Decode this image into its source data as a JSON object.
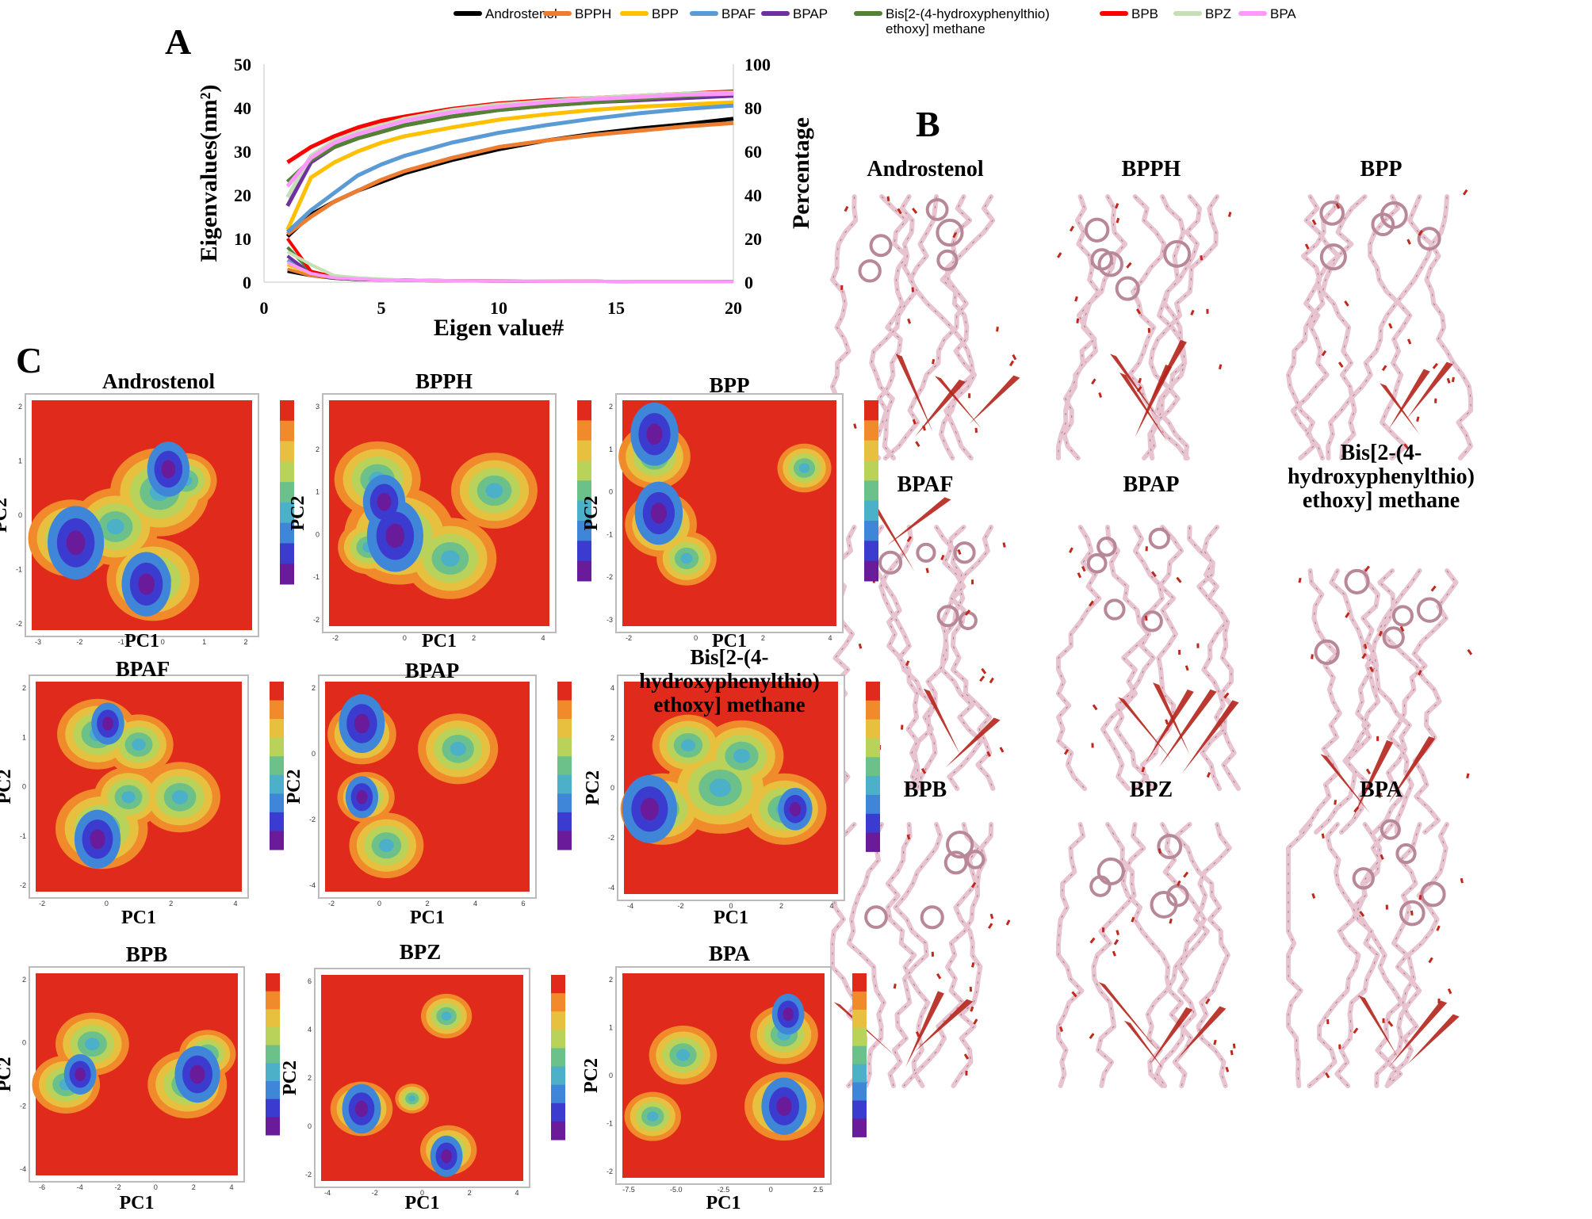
{
  "colors": {
    "Androstenol": "#000000",
    "BPPH": "#ed7d31",
    "BPP": "#ffc000",
    "BPAF": "#5b9bd5",
    "BPAP": "#7030a0",
    "Bis": "#548235",
    "BPB": "#ff0000",
    "BPZ": "#c5e0b4",
    "BPA": "#ff99ff"
  },
  "panel_letters": {
    "a": "A",
    "b": "B",
    "c": "C"
  },
  "legend": [
    {
      "key": "Androstenol",
      "label_lines": [
        "Androstenol"
      ]
    },
    {
      "key": "BPPH",
      "label_lines": [
        "BPPH"
      ]
    },
    {
      "key": "BPP",
      "label_lines": [
        "BPP"
      ]
    },
    {
      "key": "BPAF",
      "label_lines": [
        "BPAF"
      ]
    },
    {
      "key": "BPAP",
      "label_lines": [
        "BPAP"
      ]
    },
    {
      "key": "Bis",
      "label_lines": [
        "Bis[2-(4-hydroxyphenylthio)",
        "ethoxy] methane"
      ]
    },
    {
      "key": "BPB",
      "label_lines": [
        "BPB"
      ]
    },
    {
      "key": "BPZ",
      "label_lines": [
        "BPZ"
      ]
    },
    {
      "key": "BPA",
      "label_lines": [
        "BPA"
      ]
    }
  ],
  "chart_data": [
    {
      "type": "line",
      "panel": "A",
      "xlabel": "Eigen value#",
      "ylabel_left": "Eigenvalues(nm²)",
      "ylabel_right": "Percentage",
      "xlim": [
        0,
        20
      ],
      "ylim_left": [
        0,
        50
      ],
      "ylim_right": [
        0,
        100
      ],
      "xticks": [
        0,
        5,
        10,
        15,
        20
      ],
      "yticks_left": [
        0,
        10,
        20,
        30,
        40,
        50
      ],
      "yticks_right": [
        0,
        20,
        40,
        60,
        80,
        100
      ],
      "x": [
        1,
        2,
        3,
        4,
        5,
        6,
        8,
        10,
        12,
        14,
        16,
        18,
        20
      ],
      "cumulative_percentage": [
        {
          "name": "Androstenol",
          "values": [
            21,
            31,
            37,
            42,
            46,
            50,
            56,
            61,
            65,
            68,
            70.5,
            72.5,
            75
          ]
        },
        {
          "name": "BPPH",
          "values": [
            22,
            30,
            37,
            42,
            47,
            51,
            57,
            62,
            65,
            67.5,
            69.5,
            71.5,
            73
          ]
        },
        {
          "name": "BPP",
          "values": [
            24,
            48,
            55,
            60,
            64,
            67,
            71,
            74.5,
            77,
            79,
            80.5,
            81.5,
            82.5
          ]
        },
        {
          "name": "BPAF",
          "values": [
            23,
            33,
            41,
            49,
            54,
            58,
            64,
            68.5,
            72,
            75,
            77.5,
            79.5,
            81
          ]
        },
        {
          "name": "BPAP",
          "values": [
            35,
            55,
            62,
            66,
            69,
            72,
            76,
            79,
            81,
            82.5,
            83.5,
            84.5,
            85.5
          ]
        },
        {
          "name": "Bis",
          "values": [
            46,
            56,
            62,
            66,
            69,
            72,
            76,
            79,
            81,
            82.5,
            84,
            85.5,
            86.5
          ]
        },
        {
          "name": "BPB",
          "values": [
            55,
            62,
            67,
            71,
            74,
            76,
            79.5,
            82,
            83.5,
            84.5,
            85.5,
            86.5,
            87.5
          ]
        },
        {
          "name": "BPZ",
          "values": [
            39,
            58,
            65,
            69,
            72,
            75,
            79,
            81.5,
            83,
            84.5,
            85.5,
            86.5,
            87
          ]
        },
        {
          "name": "BPA",
          "values": [
            44,
            57,
            64,
            68,
            71,
            74,
            78,
            80.5,
            82.5,
            84,
            85,
            86,
            86.5
          ]
        }
      ],
      "eigenvalues": [
        {
          "name": "Androstenol",
          "values": [
            2.5,
            1.5,
            0.9,
            0.6,
            0.5,
            0.4,
            0.3,
            0.25,
            0.2,
            0.2,
            0.15,
            0.15,
            0.1
          ]
        },
        {
          "name": "BPPH",
          "values": [
            3,
            1.5,
            1,
            0.7,
            0.5,
            0.4,
            0.3,
            0.25,
            0.2,
            0.2,
            0.15,
            0.15,
            0.1
          ]
        },
        {
          "name": "BPP",
          "values": [
            4,
            2,
            1,
            0.7,
            0.5,
            0.4,
            0.3,
            0.25,
            0.2,
            0.2,
            0.15,
            0.15,
            0.1
          ]
        },
        {
          "name": "BPAF",
          "values": [
            5,
            2,
            1.2,
            0.8,
            0.6,
            0.5,
            0.35,
            0.3,
            0.25,
            0.2,
            0.15,
            0.15,
            0.1
          ]
        },
        {
          "name": "BPAP",
          "values": [
            6,
            2,
            1,
            0.7,
            0.5,
            0.4,
            0.3,
            0.25,
            0.2,
            0.2,
            0.15,
            0.15,
            0.1
          ]
        },
        {
          "name": "Bis",
          "values": [
            8,
            2.5,
            1.2,
            0.8,
            0.6,
            0.5,
            0.35,
            0.3,
            0.25,
            0.2,
            0.15,
            0.15,
            0.1
          ]
        },
        {
          "name": "BPB",
          "values": [
            10,
            2.5,
            1.2,
            0.8,
            0.6,
            0.5,
            0.35,
            0.3,
            0.25,
            0.2,
            0.15,
            0.15,
            0.1
          ]
        },
        {
          "name": "BPZ",
          "values": [
            7,
            4,
            1.5,
            1,
            0.7,
            0.5,
            0.35,
            0.3,
            0.25,
            0.2,
            0.15,
            0.15,
            0.1
          ]
        },
        {
          "name": "BPA",
          "values": [
            4.5,
            2,
            1,
            0.7,
            0.5,
            0.4,
            0.3,
            0.25,
            0.2,
            0.2,
            0.15,
            0.15,
            0.1
          ]
        }
      ]
    },
    {
      "type": "heatmap",
      "panel": "C",
      "description": "Free energy landscapes (PC1 vs PC2) for each system",
      "xlabel": "PC1",
      "ylabel": "PC2",
      "colormap": [
        "#6a1b9a",
        "#3b3bd0",
        "#3f86d8",
        "#4cb0c8",
        "#6cc08a",
        "#b8d25a",
        "#e8c040",
        "#f08a2a",
        "#e02a1c"
      ],
      "plots": [
        {
          "name": "Androstenol",
          "xticks": [
            "-3",
            "-2",
            "-1",
            "0",
            "1",
            "2"
          ],
          "yticks": [
            "2",
            "1",
            "0",
            "-1",
            "-2"
          ],
          "minima": [
            [
              0.2,
              0.62,
              0.08
            ],
            [
              0.52,
              0.8,
              0.07
            ],
            [
              0.62,
              0.3,
              0.06
            ]
          ],
          "mid": [
            [
              0.18,
              0.6,
              0.14
            ],
            [
              0.38,
              0.55,
              0.14
            ],
            [
              0.58,
              0.4,
              0.16
            ],
            [
              0.55,
              0.78,
              0.15
            ],
            [
              0.7,
              0.35,
              0.1
            ]
          ]
        },
        {
          "name": "BPPH",
          "xticks": [
            "-2",
            "0",
            "2",
            "4"
          ],
          "yticks": [
            "3",
            "2",
            "1",
            "0",
            "-1",
            "-2"
          ],
          "minima": [
            [
              0.3,
              0.6,
              0.08
            ],
            [
              0.25,
              0.45,
              0.06
            ]
          ],
          "mid": [
            [
              0.22,
              0.35,
              0.14
            ],
            [
              0.32,
              0.6,
              0.18
            ],
            [
              0.55,
              0.7,
              0.15
            ],
            [
              0.75,
              0.4,
              0.14
            ],
            [
              0.18,
              0.65,
              0.1
            ]
          ]
        },
        {
          "name": "BPP",
          "xticks": [
            "-2",
            "0",
            "2",
            "4"
          ],
          "yticks": [
            "2",
            "1",
            "0",
            "-1",
            "-2",
            "-3"
          ],
          "minima": [
            [
              0.15,
              0.15,
              0.07
            ],
            [
              0.17,
              0.5,
              0.07
            ]
          ],
          "mid": [
            [
              0.15,
              0.25,
              0.12
            ],
            [
              0.18,
              0.55,
              0.12
            ],
            [
              0.3,
              0.7,
              0.1
            ],
            [
              0.85,
              0.3,
              0.09
            ]
          ]
        },
        {
          "name": "BPAF",
          "xticks": [
            "-2",
            "0",
            "2",
            "4"
          ],
          "yticks": [
            "2",
            "1",
            "0",
            "-1",
            "-2"
          ],
          "minima": [
            [
              0.3,
              0.75,
              0.07
            ],
            [
              0.35,
              0.2,
              0.05
            ]
          ],
          "mid": [
            [
              0.3,
              0.25,
              0.14
            ],
            [
              0.32,
              0.7,
              0.16
            ],
            [
              0.5,
              0.3,
              0.12
            ],
            [
              0.7,
              0.55,
              0.14
            ],
            [
              0.45,
              0.55,
              0.12
            ]
          ]
        },
        {
          "name": "BPAP",
          "xticks": [
            "-2",
            "0",
            "2",
            "4",
            "6"
          ],
          "yticks": [
            "2",
            "0",
            "-2",
            "-4"
          ],
          "minima": [
            [
              0.18,
              0.2,
              0.07
            ],
            [
              0.18,
              0.55,
              0.05
            ]
          ],
          "mid": [
            [
              0.18,
              0.25,
              0.12
            ],
            [
              0.2,
              0.55,
              0.1
            ],
            [
              0.3,
              0.78,
              0.13
            ],
            [
              0.65,
              0.32,
              0.14
            ]
          ]
        },
        {
          "name": "Bis",
          "title_lines": [
            "Bis[2-(4-",
            "hydroxyphenylthio)",
            "ethoxy] methane"
          ],
          "xticks": [
            "-4",
            "-2",
            "0",
            "2",
            "4"
          ],
          "yticks": [
            "4",
            "2",
            "0",
            "-2",
            "-4"
          ],
          "minima": [
            [
              0.12,
              0.6,
              0.08
            ],
            [
              0.8,
              0.6,
              0.05
            ]
          ],
          "mid": [
            [
              0.18,
              0.6,
              0.14
            ],
            [
              0.45,
              0.5,
              0.18
            ],
            [
              0.75,
              0.6,
              0.14
            ],
            [
              0.55,
              0.35,
              0.14
            ],
            [
              0.3,
              0.3,
              0.12
            ]
          ]
        },
        {
          "name": "BPB",
          "xticks": [
            "-6",
            "-4",
            "-2",
            "0",
            "2",
            "4"
          ],
          "yticks": [
            "2",
            "0",
            "-2",
            "-4"
          ],
          "minima": [
            [
              0.22,
              0.5,
              0.05
            ],
            [
              0.8,
              0.5,
              0.07
            ]
          ],
          "mid": [
            [
              0.15,
              0.55,
              0.12
            ],
            [
              0.28,
              0.35,
              0.13
            ],
            [
              0.75,
              0.55,
              0.14
            ],
            [
              0.85,
              0.4,
              0.1
            ]
          ]
        },
        {
          "name": "BPZ",
          "xticks": [
            "-4",
            "-2",
            "0",
            "2",
            "4"
          ],
          "yticks": [
            "6",
            "4",
            "2",
            "0",
            "-2"
          ],
          "minima": [
            [
              0.2,
              0.65,
              0.06
            ],
            [
              0.62,
              0.88,
              0.05
            ]
          ],
          "mid": [
            [
              0.2,
              0.65,
              0.11
            ],
            [
              0.63,
              0.85,
              0.1
            ],
            [
              0.62,
              0.2,
              0.09
            ],
            [
              0.45,
              0.6,
              0.06
            ]
          ]
        },
        {
          "name": "BPA",
          "xticks": [
            "-7.5",
            "-5.0",
            "-2.5",
            "0",
            "2.5"
          ],
          "yticks": [
            "2",
            "1",
            "0",
            "-1",
            "-2"
          ],
          "minima": [
            [
              0.82,
              0.2,
              0.05
            ],
            [
              0.8,
              0.65,
              0.07
            ]
          ],
          "mid": [
            [
              0.8,
              0.3,
              0.12
            ],
            [
              0.8,
              0.65,
              0.14
            ],
            [
              0.3,
              0.4,
              0.12
            ],
            [
              0.15,
              0.7,
              0.1
            ]
          ]
        }
      ]
    }
  ],
  "structures": [
    {
      "key": "Androstenol",
      "title_lines": [
        "Androstenol"
      ],
      "arrows": [
        [
          0.45,
          0.95
        ],
        [
          0.55,
          0.93
        ],
        [
          0.75,
          0.9
        ],
        [
          0.82,
          0.92
        ]
      ]
    },
    {
      "key": "BPPH",
      "title_lines": [
        "BPPH"
      ],
      "arrows": [
        [
          0.5,
          0.82
        ],
        [
          0.55,
          0.88
        ],
        [
          0.42,
          0.95
        ],
        [
          0.6,
          0.97
        ]
      ]
    },
    {
      "key": "BPP",
      "title_lines": [
        "BPP"
      ],
      "arrows": [
        [
          0.65,
          0.88
        ],
        [
          0.72,
          0.94
        ],
        [
          0.55,
          0.92
        ]
      ]
    },
    {
      "key": "BPAF",
      "title_lines": [
        "BPAF"
      ],
      "arrows": [
        [
          0.3,
          0.1
        ],
        [
          0.45,
          0.2
        ],
        [
          0.62,
          0.95
        ],
        [
          0.7,
          0.9
        ]
      ]
    },
    {
      "key": "BPAP",
      "title_lines": [
        "BPAP"
      ],
      "arrows": [
        [
          0.55,
          0.95
        ],
        [
          0.62,
          0.92
        ],
        [
          0.68,
          0.97
        ],
        [
          0.72,
          0.9
        ],
        [
          0.48,
          0.93
        ]
      ]
    },
    {
      "key": "Bis",
      "title_lines": [
        "Bis[2-(4-",
        "hydroxyphenylthio)",
        "ethoxy] methane"
      ],
      "arrows": [
        [
          0.35,
          0.98
        ],
        [
          0.45,
          0.96
        ],
        [
          0.55,
          0.92
        ]
      ]
    },
    {
      "key": "BPB",
      "title_lines": [
        "BPB"
      ],
      "arrows": [
        [
          0.4,
          0.96
        ],
        [
          0.35,
          0.92
        ],
        [
          0.45,
          0.9
        ]
      ]
    },
    {
      "key": "BPZ",
      "title_lines": [
        "BPZ"
      ],
      "arrows": [
        [
          0.5,
          0.95
        ],
        [
          0.58,
          0.97
        ],
        [
          0.65,
          0.93
        ],
        [
          0.55,
          0.9
        ]
      ]
    },
    {
      "key": "BPA",
      "title_lines": [
        "BPA"
      ],
      "arrows": [
        [
          0.55,
          0.96
        ],
        [
          0.6,
          0.92
        ],
        [
          0.65,
          0.95
        ]
      ]
    }
  ]
}
